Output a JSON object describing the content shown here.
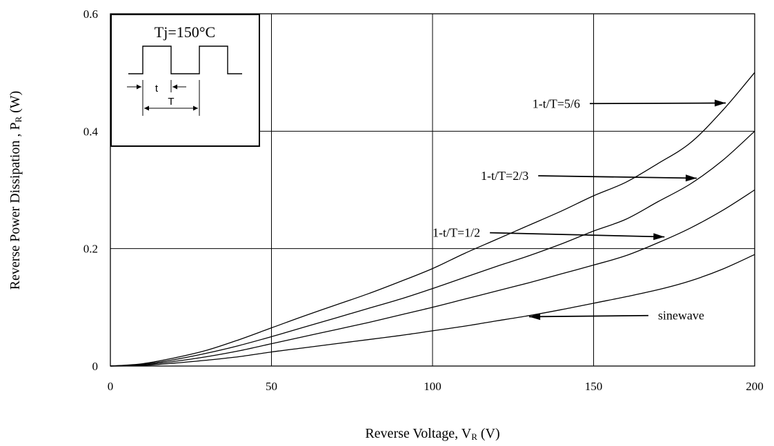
{
  "chart_data": {
    "type": "line",
    "xlabel": {
      "main": "Reverse Voltage, V",
      "sub": "R",
      "unit": " (V)"
    },
    "ylabel": {
      "main": "Reverse Power Dissipation , P",
      "sub": "R",
      "unit": " (W)"
    },
    "xlim": [
      0,
      200
    ],
    "ylim": [
      0,
      0.6
    ],
    "x_ticks": [
      0,
      50,
      100,
      150,
      200
    ],
    "y_ticks": [
      0,
      0.2,
      0.4,
      0.6
    ],
    "x_tick_labels": [
      "0",
      "50",
      "100",
      "150",
      "200"
    ],
    "y_tick_labels": [
      "0",
      "0.2",
      "0.4",
      "0.6"
    ],
    "grid": true,
    "series": [
      {
        "name": "1-t/T=5/6",
        "x": [
          0,
          10,
          20,
          30,
          40,
          50,
          60,
          70,
          80,
          90,
          100,
          110,
          120,
          130,
          140,
          150,
          160,
          170,
          180,
          190,
          200
        ],
        "y": [
          0,
          0.004,
          0.014,
          0.027,
          0.045,
          0.065,
          0.085,
          0.104,
          0.123,
          0.144,
          0.166,
          0.192,
          0.216,
          0.24,
          0.264,
          0.29,
          0.313,
          0.345,
          0.38,
          0.435,
          0.5
        ]
      },
      {
        "name": "1-t/T=2/3",
        "x": [
          0,
          10,
          20,
          30,
          40,
          50,
          60,
          70,
          80,
          90,
          100,
          110,
          120,
          130,
          140,
          150,
          160,
          170,
          180,
          190,
          200
        ],
        "y": [
          0,
          0.003,
          0.011,
          0.022,
          0.035,
          0.05,
          0.066,
          0.082,
          0.098,
          0.114,
          0.132,
          0.151,
          0.17,
          0.188,
          0.208,
          0.23,
          0.25,
          0.28,
          0.31,
          0.35,
          0.4
        ]
      },
      {
        "name": "1-t/T=1/2",
        "x": [
          0,
          10,
          20,
          30,
          40,
          50,
          60,
          70,
          80,
          90,
          100,
          110,
          120,
          130,
          140,
          150,
          160,
          170,
          180,
          190,
          200
        ],
        "y": [
          0,
          0.002,
          0.008,
          0.016,
          0.026,
          0.038,
          0.05,
          0.062,
          0.074,
          0.087,
          0.1,
          0.114,
          0.128,
          0.142,
          0.157,
          0.172,
          0.188,
          0.21,
          0.235,
          0.265,
          0.3
        ]
      },
      {
        "name": "sinewave",
        "x": [
          0,
          10,
          20,
          30,
          40,
          50,
          60,
          70,
          80,
          90,
          100,
          110,
          120,
          130,
          140,
          150,
          160,
          170,
          180,
          190,
          200
        ],
        "y": [
          0,
          0.001,
          0.005,
          0.01,
          0.016,
          0.024,
          0.031,
          0.038,
          0.045,
          0.052,
          0.06,
          0.068,
          0.077,
          0.086,
          0.096,
          0.107,
          0.118,
          0.13,
          0.145,
          0.165,
          0.19
        ]
      }
    ],
    "annotations": [
      {
        "text": "1-t/T=5/6",
        "label_at": [
          131,
          0.44
        ],
        "arrow_to": [
          191,
          0.448
        ]
      },
      {
        "text": "1-t/T=2/3",
        "label_at": [
          115,
          0.317
        ],
        "arrow_to": [
          182,
          0.32
        ]
      },
      {
        "text": "1-t/T=1/2",
        "label_at": [
          100,
          0.22
        ],
        "arrow_to": [
          172,
          0.22
        ]
      },
      {
        "text": "sinewave",
        "label_at": [
          170,
          0.079
        ],
        "arrow_to": [
          130,
          0.084
        ]
      }
    ],
    "inset": {
      "condition": "Tj=150°C",
      "labels": {
        "pulse_width": "t",
        "period": "T"
      }
    }
  }
}
